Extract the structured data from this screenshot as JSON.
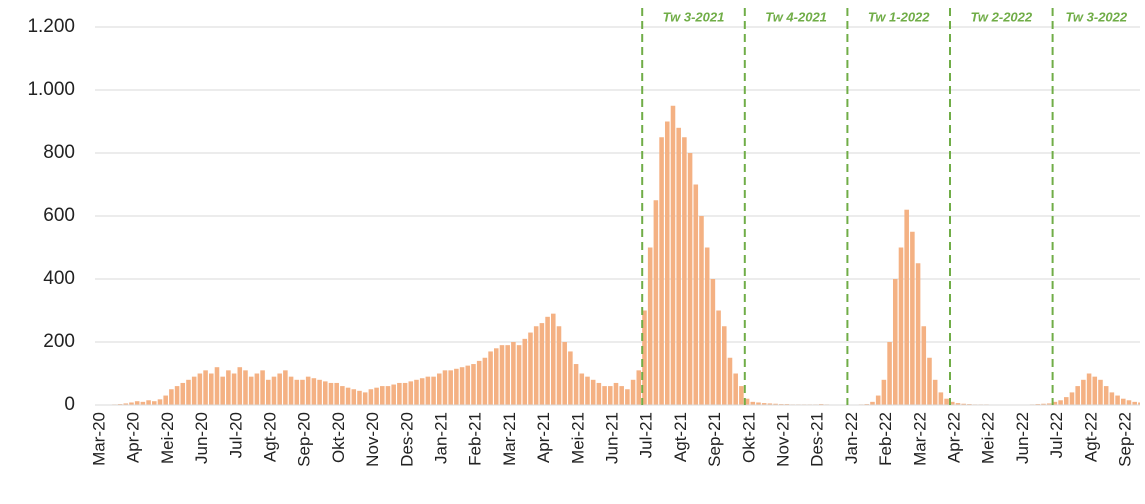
{
  "chart_data": {
    "type": "bar",
    "color": "#f4b183",
    "grid": true,
    "ylim": [
      0,
      1200
    ],
    "yticks": [
      0,
      200,
      400,
      600,
      800,
      {
        "value": 1000,
        "label": "1.000"
      },
      {
        "value": 1200,
        "label": "1.200"
      }
    ],
    "categories": [
      "Mar-20",
      "Apr-20",
      "Mei-20",
      "Jun-20",
      "Jul-20",
      "Agt-20",
      "Sep-20",
      "Okt-20",
      "Nov-20",
      "Des-20",
      "Jan-21",
      "Feb-21",
      "Mar-21",
      "Apr-21",
      "Mei-21",
      "Jun-21",
      "Jul-21",
      "Agt-21",
      "Sep-21",
      "Okt-21",
      "Nov-21",
      "Des-21",
      "Jan-22",
      "Feb-22",
      "Mar-22",
      "Apr-22",
      "Mei-22",
      "Jun-22",
      "Jul-22",
      "Agt-22",
      "Sep-22"
    ],
    "values": [
      [
        0,
        0,
        1,
        2,
        3,
        5
      ],
      [
        8,
        12,
        10,
        15,
        12,
        18
      ],
      [
        30,
        50,
        60,
        70,
        80,
        90
      ],
      [
        100,
        110,
        100,
        120,
        90,
        110
      ],
      [
        100,
        120,
        110,
        90,
        100,
        110
      ],
      [
        80,
        90,
        100,
        110,
        90,
        80
      ],
      [
        80,
        90,
        85,
        80,
        75,
        70
      ],
      [
        70,
        60,
        55,
        50,
        45,
        40
      ],
      [
        50,
        55,
        60,
        60,
        65,
        70
      ],
      [
        70,
        75,
        80,
        85,
        90,
        90
      ],
      [
        100,
        110,
        110,
        115,
        120,
        125
      ],
      [
        130,
        140,
        150,
        170,
        180,
        190
      ],
      [
        190,
        200,
        190,
        210,
        230,
        250
      ],
      [
        260,
        280,
        290,
        250,
        200,
        170
      ],
      [
        130,
        100,
        90,
        80,
        70,
        60
      ],
      [
        60,
        70,
        60,
        50,
        80,
        110
      ],
      [
        300,
        500,
        650,
        850,
        900,
        950
      ],
      [
        880,
        850,
        800,
        700,
        600,
        500
      ],
      [
        400,
        300,
        250,
        150,
        100,
        60
      ],
      [
        20,
        10,
        8,
        6,
        5,
        4
      ],
      [
        3,
        3,
        2,
        2,
        2,
        2
      ],
      [
        2,
        3,
        2,
        1,
        1,
        1
      ],
      [
        1,
        1,
        2,
        3,
        10,
        30
      ],
      [
        80,
        200,
        400,
        500,
        620,
        550
      ],
      [
        450,
        250,
        150,
        80,
        40,
        20
      ],
      [
        10,
        6,
        4,
        3,
        2,
        2
      ],
      [
        2,
        1,
        1,
        1,
        1,
        1
      ],
      [
        1,
        1,
        2,
        3,
        4,
        5
      ],
      [
        10,
        15,
        25,
        40,
        60,
        80
      ],
      [
        100,
        90,
        80,
        60,
        40,
        30
      ],
      [
        20,
        15,
        10,
        8,
        6,
        5
      ]
    ],
    "annotations": [
      {
        "label": "Tw 3-2021",
        "start": "Jul-21"
      },
      {
        "label": "Tw 4-2021",
        "start": "Okt-21"
      },
      {
        "label": "Tw 1-2022",
        "start": "Jan-22"
      },
      {
        "label": "Tw 2-2022",
        "start": "Apr-22"
      },
      {
        "label": "Tw 3-2022",
        "start": "Jul-22"
      }
    ],
    "annotation_color": "#70ad47"
  }
}
